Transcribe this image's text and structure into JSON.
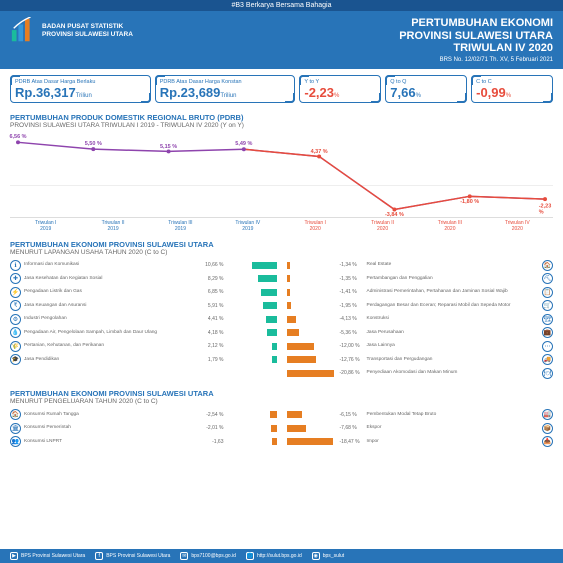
{
  "topbar": "#B3 Berkarya Bersama Bahagia",
  "org": {
    "line1": "BADAN PUSAT STATISTIK",
    "line2": "PROVINSI SULAWESI UTARA"
  },
  "title": {
    "l1": "PERTUMBUHAN EKONOMI",
    "l2": "PROVINSI SULAWESI UTARA",
    "l3": "TRIWULAN IV 2020",
    "sub": "BRS No. 12/02/71 Th. XV, 5 Februari 2021"
  },
  "metrics": [
    {
      "label": "PDRB Atas Dasar Harga Berlaku",
      "prefix": "Rp.",
      "val": "36,317",
      "unit": "Triliun",
      "neg": false,
      "narrow": false
    },
    {
      "label": "PDRB Atas Dasar Harga Konstan",
      "prefix": "Rp.",
      "val": "23,689",
      "unit": "Triliun",
      "neg": false,
      "narrow": false
    },
    {
      "label": "Y to Y",
      "prefix": "",
      "val": "-2,23",
      "unit": "%",
      "neg": true,
      "narrow": true
    },
    {
      "label": "Q to Q",
      "prefix": "",
      "val": "7,66",
      "unit": "%",
      "neg": false,
      "narrow": true
    },
    {
      "label": "C to C",
      "prefix": "",
      "val": "-0,99",
      "unit": "%",
      "neg": true,
      "narrow": true
    }
  ],
  "chart": {
    "title": "PERTUMBUHAN PRODUK DOMESTIK REGIONAL BRUTO (PDRB)",
    "sub": "PROVINSI SULAWESI UTARA TRIWULAN I 2019 - TRIWULAN IV 2020 (Y on Y)",
    "ymin": -5,
    "ymax": 8,
    "points": [
      {
        "x": "Triwulan I",
        "y": "2019",
        "val": 6.56,
        "lbl": "6,56 %",
        "color": "#8e44ad"
      },
      {
        "x": "Triwulan II",
        "y": "2019",
        "val": 5.5,
        "lbl": "5,50 %",
        "color": "#8e44ad"
      },
      {
        "x": "Triwulan III",
        "y": "2019",
        "val": 5.15,
        "lbl": "5,15 %",
        "color": "#8e44ad"
      },
      {
        "x": "Triwulan IV",
        "y": "2019",
        "val": 5.49,
        "lbl": "5,49 %",
        "color": "#8e44ad"
      },
      {
        "x": "Triwulan I",
        "y": "2020",
        "val": 4.37,
        "lbl": "4,37 %",
        "color": "#e74c3c"
      },
      {
        "x": "Triwulan II",
        "y": "2020",
        "val": -3.84,
        "lbl": "-3,84 %",
        "color": "#e74c3c"
      },
      {
        "x": "Triwulan III",
        "y": "2020",
        "val": -1.8,
        "lbl": "-1,80 %",
        "color": "#e74c3c"
      },
      {
        "x": "Triwulan IV",
        "y": "2020",
        "val": -2.23,
        "lbl": "-2,23 %",
        "color": "#e74c3c"
      }
    ]
  },
  "sec2": {
    "title": "PERTUMBUHAN EKONOMI PROVINSI SULAWESI UTARA",
    "sub": "MENURUT LAPANGAN USAHA TAHUN 2020  (C to C)",
    "left": [
      {
        "icon": "ℹ",
        "name": "Informasi dan Komunikasi",
        "val": 10.66,
        "lbl": "10,66 %"
      },
      {
        "icon": "✚",
        "name": "Jasa Kesehatan dan Kegiatan Sosial",
        "val": 8.29,
        "lbl": "8,29 %"
      },
      {
        "icon": "⚡",
        "name": "Pengadaan Listrik dan Gas",
        "val": 6.85,
        "lbl": "6,85 %"
      },
      {
        "icon": "₹",
        "name": "Jasa Keuangan dan Asuransi",
        "val": 5.91,
        "lbl": "5,91 %"
      },
      {
        "icon": "⚙",
        "name": "Industri Pengolahan",
        "val": 4.41,
        "lbl": "4,41 %"
      },
      {
        "icon": "💧",
        "name": "Pengadaan Air, Pengelolaan Sampah, Limbah dan Daur Ulang",
        "val": 4.18,
        "lbl": "4,18 %"
      },
      {
        "icon": "🌾",
        "name": "Pertanian, Kehutanan, dan Perikanan",
        "val": 2.12,
        "lbl": "2,12 %"
      },
      {
        "icon": "🎓",
        "name": "Jasa Pendidikan",
        "val": 1.79,
        "lbl": "1,79 %"
      }
    ],
    "right": [
      {
        "icon": "🏠",
        "name": "Real Estate",
        "val": -1.34,
        "lbl": "-1,34 %"
      },
      {
        "icon": "⛏",
        "name": "Pertambangan dan Penggalian",
        "val": -1.35,
        "lbl": "-1,35 %"
      },
      {
        "icon": "📋",
        "name": "Administrasi Pemerintahan, Pertahanan dan Jaminan Sosial Wajib",
        "val": -1.41,
        "lbl": "-1,41 %"
      },
      {
        "icon": "🛒",
        "name": "Perdagangan Besar dan Eceran; Reparasi Mobil dan Sepeda Motor",
        "val": -1.95,
        "lbl": "-1,95 %"
      },
      {
        "icon": "🏗",
        "name": "Konstruksi",
        "val": -4.13,
        "lbl": "-4,13 %"
      },
      {
        "icon": "💼",
        "name": "Jasa Perusahaan",
        "val": -5.36,
        "lbl": "-5,36 %"
      },
      {
        "icon": "⋯",
        "name": "Jasa Lainnya",
        "val": -12.0,
        "lbl": "-12,00 %"
      },
      {
        "icon": "🚚",
        "name": "Transportasi dan Pergudangan",
        "val": -12.76,
        "lbl": "-12,76 %"
      },
      {
        "icon": "🍽",
        "name": "Penyediaan Akomodasi dan Makan Minum",
        "val": -20.86,
        "lbl": "-20,86 %"
      }
    ],
    "maxAbs": 21
  },
  "sec3": {
    "title": "PERTUMBUHAN EKONOMI PROVINSI SULAWESI UTARA",
    "sub": "MENURUT PENGELUARAN TAHUN 2020 (C to C)",
    "left": [
      {
        "icon": "🏠",
        "name": "Konsumsi Rumah Tangga",
        "val": -2.54,
        "lbl": "-2,54 %"
      },
      {
        "icon": "🏛",
        "name": "Konsumsi Pemerintah",
        "val": -2.01,
        "lbl": "-2,01 %"
      },
      {
        "icon": "👥",
        "name": "Konsumsi LNPRT",
        "val": -1.63,
        "lbl": "-1,63"
      }
    ],
    "right": [
      {
        "icon": "🏭",
        "name": "Pembentukan Modal Tetap Bruto",
        "val": -6.15,
        "lbl": "-6,15 %"
      },
      {
        "icon": "📦",
        "name": "Ekspor",
        "val": -7.68,
        "lbl": "-7,68 %"
      },
      {
        "icon": "📥",
        "name": "Impor",
        "val": -18.47,
        "lbl": "-18,47 %"
      }
    ],
    "maxAbs": 19
  },
  "colors": {
    "pos": "#1abc9c",
    "neg": "#e67e22",
    "negLight": "#f5b77d",
    "blue": "#2874b8"
  },
  "footer": [
    {
      "icon": "▶",
      "txt": "BPS Provinsi Sulawesi Utara"
    },
    {
      "icon": "f",
      "txt": "BPS Provinsi Sulawesi Utara"
    },
    {
      "icon": "✉",
      "txt": "bps7100@bps.go.id"
    },
    {
      "icon": "🌐",
      "txt": "http://sulut.bps.go.id"
    },
    {
      "icon": "◉",
      "txt": "bps_sulut"
    }
  ]
}
